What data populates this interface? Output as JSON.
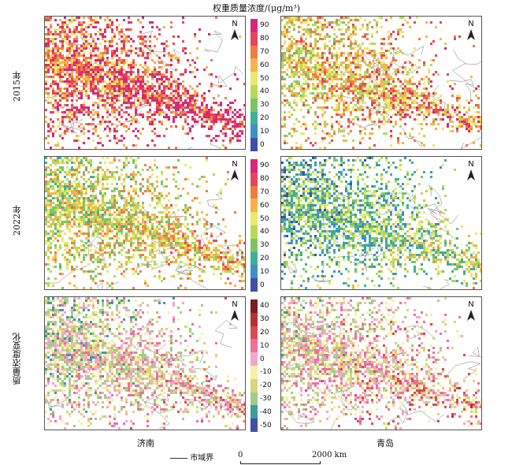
{
  "title": "权重质量浓度/(μg/m³)",
  "rows": [
    "2015年",
    "2022年",
    "质量浓度变化"
  ],
  "columns": [
    "济南",
    "青岛"
  ],
  "legend_conc": {
    "ticks": [
      "90",
      "80",
      "70",
      "60",
      "50",
      "40",
      "30",
      "20",
      "10",
      "0"
    ],
    "colors": [
      "#d6287a",
      "#e8455c",
      "#f07c45",
      "#f6b34a",
      "#ece86a",
      "#b6d95a",
      "#7cc463",
      "#3fae9a",
      "#3f8ec7",
      "#3f4fa6"
    ]
  },
  "legend_conc2": {
    "ticks": [
      "90",
      "80",
      "70",
      "60",
      "50",
      "40",
      "30",
      "20",
      "10",
      "0"
    ]
  },
  "legend_change": {
    "ticks": [
      "40",
      "30",
      "20",
      "10",
      "0",
      "-10",
      "-20",
      "-30",
      "-40",
      "-50"
    ],
    "colors": [
      "#7a1f22",
      "#b6322f",
      "#d94a57",
      "#ef6f9c",
      "#f3a6c9",
      "#f5f0a6",
      "#d7d678",
      "#9fcd86",
      "#3e9c9a",
      "#3f4fa6"
    ]
  },
  "north_label": "N",
  "scale": {
    "start": "0",
    "end": "2000 km",
    "boundary_label": "市域界"
  },
  "panels": [
    {
      "id": "jinan-2015",
      "palette": "conc",
      "density": 0.92,
      "mean": 0.72
    },
    {
      "id": "qingdao-2015",
      "palette": "conc",
      "density": 0.8,
      "mean": 0.55
    },
    {
      "id": "jinan-2022",
      "palette": "conc",
      "density": 0.88,
      "mean": 0.45
    },
    {
      "id": "qingdao-2022",
      "palette": "conc",
      "density": 0.82,
      "mean": 0.27
    },
    {
      "id": "jinan-change",
      "palette": "change",
      "density": 0.9,
      "mean": 0.35
    },
    {
      "id": "qingdao-change",
      "palette": "change",
      "density": 0.85,
      "mean": 0.4
    }
  ]
}
